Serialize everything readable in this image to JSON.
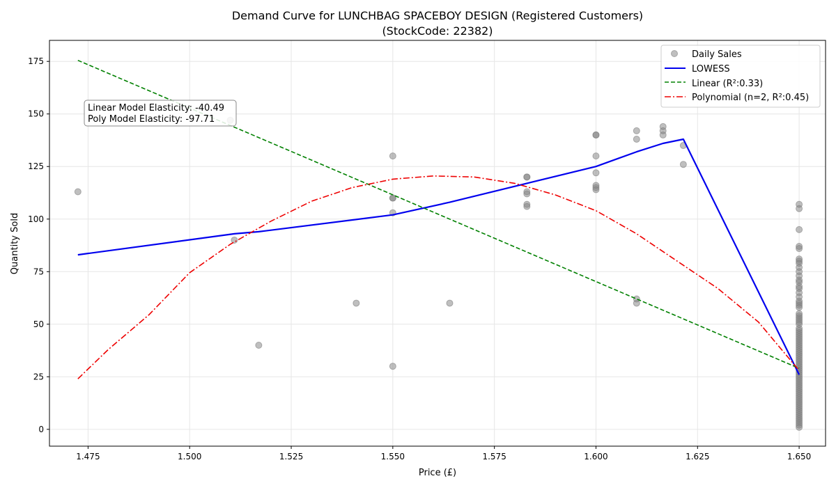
{
  "chart_data": {
    "type": "scatter",
    "title": "Demand Curve for LUNCHBAG SPACEBOY DESIGN  (Registered Customers)",
    "subtitle": "(StockCode: 22382)",
    "xlabel": "Price (£)",
    "ylabel": "Quantity Sold",
    "xlim": [
      1.4655,
      1.6565
    ],
    "ylim": [
      -8,
      185
    ],
    "grid": true,
    "x_ticks": [
      1.475,
      1.5,
      1.525,
      1.55,
      1.575,
      1.6,
      1.625,
      1.65
    ],
    "x_tick_labels": [
      "1.475",
      "1.500",
      "1.525",
      "1.550",
      "1.575",
      "1.600",
      "1.625",
      "1.650"
    ],
    "y_ticks": [
      0,
      25,
      50,
      75,
      100,
      125,
      150,
      175
    ],
    "y_tick_labels": [
      "0",
      "25",
      "50",
      "75",
      "100",
      "125",
      "150",
      "175"
    ],
    "legend_position": "top-right",
    "annotation": {
      "line1": "Linear Model Elasticity: -40.49",
      "line2": "Poly Model Elasticity: -97.71",
      "position": "upper-left"
    },
    "series": [
      {
        "name": "Daily Sales",
        "kind": "scatter",
        "color": "#808080",
        "points": [
          [
            1.4725,
            113
          ],
          [
            1.51,
            147
          ],
          [
            1.511,
            90
          ],
          [
            1.517,
            40
          ],
          [
            1.541,
            60
          ],
          [
            1.55,
            130
          ],
          [
            1.55,
            110
          ],
          [
            1.55,
            110
          ],
          [
            1.55,
            103
          ],
          [
            1.55,
            30
          ],
          [
            1.564,
            60
          ],
          [
            1.583,
            120
          ],
          [
            1.583,
            120
          ],
          [
            1.583,
            113
          ],
          [
            1.583,
            112
          ],
          [
            1.583,
            107
          ],
          [
            1.583,
            106
          ],
          [
            1.6,
            140
          ],
          [
            1.6,
            140
          ],
          [
            1.6,
            130
          ],
          [
            1.6,
            122
          ],
          [
            1.6,
            116
          ],
          [
            1.6,
            115
          ],
          [
            1.6,
            114
          ],
          [
            1.61,
            142
          ],
          [
            1.61,
            138
          ],
          [
            1.61,
            62
          ],
          [
            1.61,
            60
          ],
          [
            1.6165,
            144
          ],
          [
            1.6165,
            142
          ],
          [
            1.6165,
            140
          ],
          [
            1.6215,
            135
          ],
          [
            1.6215,
            126
          ],
          [
            1.65,
            107
          ],
          [
            1.65,
            105
          ],
          [
            1.65,
            95
          ],
          [
            1.65,
            87
          ],
          [
            1.65,
            86
          ],
          [
            1.65,
            81
          ],
          [
            1.65,
            80
          ],
          [
            1.65,
            79
          ],
          [
            1.65,
            77
          ],
          [
            1.65,
            75
          ],
          [
            1.65,
            73
          ],
          [
            1.65,
            71
          ],
          [
            1.65,
            70
          ],
          [
            1.65,
            68
          ],
          [
            1.65,
            67
          ],
          [
            1.65,
            65
          ],
          [
            1.65,
            63
          ],
          [
            1.65,
            61
          ],
          [
            1.65,
            60
          ],
          [
            1.65,
            59
          ],
          [
            1.65,
            58
          ],
          [
            1.65,
            55
          ],
          [
            1.65,
            54
          ],
          [
            1.65,
            53
          ],
          [
            1.65,
            52
          ],
          [
            1.65,
            51
          ],
          [
            1.65,
            50
          ],
          [
            1.65,
            48
          ],
          [
            1.65,
            47
          ],
          [
            1.65,
            46
          ],
          [
            1.65,
            45
          ],
          [
            1.65,
            44
          ],
          [
            1.65,
            43
          ],
          [
            1.65,
            42
          ],
          [
            1.65,
            41
          ],
          [
            1.65,
            40
          ],
          [
            1.65,
            39
          ],
          [
            1.65,
            38
          ],
          [
            1.65,
            37
          ],
          [
            1.65,
            36
          ],
          [
            1.65,
            35
          ],
          [
            1.65,
            34
          ],
          [
            1.65,
            33
          ],
          [
            1.65,
            32
          ],
          [
            1.65,
            31
          ],
          [
            1.65,
            30
          ],
          [
            1.65,
            29
          ],
          [
            1.65,
            28
          ],
          [
            1.65,
            27
          ],
          [
            1.65,
            26
          ],
          [
            1.65,
            25
          ],
          [
            1.65,
            24
          ],
          [
            1.65,
            23
          ],
          [
            1.65,
            22
          ],
          [
            1.65,
            21
          ],
          [
            1.65,
            20
          ],
          [
            1.65,
            19
          ],
          [
            1.65,
            18
          ],
          [
            1.65,
            17
          ],
          [
            1.65,
            16
          ],
          [
            1.65,
            15
          ],
          [
            1.65,
            14
          ],
          [
            1.65,
            13
          ],
          [
            1.65,
            12
          ],
          [
            1.65,
            11
          ],
          [
            1.65,
            10
          ],
          [
            1.65,
            9
          ],
          [
            1.65,
            8
          ],
          [
            1.65,
            7
          ],
          [
            1.65,
            6
          ],
          [
            1.65,
            5
          ],
          [
            1.65,
            4
          ],
          [
            1.65,
            3
          ],
          [
            1.65,
            2
          ],
          [
            1.65,
            1
          ]
        ]
      },
      {
        "name": "LOWESS",
        "kind": "line",
        "color": "#0000ee",
        "dash": "solid",
        "points": [
          [
            1.4725,
            83
          ],
          [
            1.511,
            93
          ],
          [
            1.517,
            94
          ],
          [
            1.55,
            102
          ],
          [
            1.564,
            108
          ],
          [
            1.583,
            117
          ],
          [
            1.6,
            125
          ],
          [
            1.61,
            132
          ],
          [
            1.6165,
            136
          ],
          [
            1.6215,
            138
          ],
          [
            1.65,
            26
          ]
        ]
      },
      {
        "name": "Linear (R²:0.33)",
        "kind": "line",
        "color": "#008000",
        "dash": "dashed",
        "points": [
          [
            1.4725,
            175.5
          ],
          [
            1.65,
            29
          ]
        ]
      },
      {
        "name": "Polynomial (n=2, R²:0.45)",
        "kind": "line",
        "color": "#ee0000",
        "dash": "dashdot",
        "points": [
          [
            1.4725,
            24
          ],
          [
            1.48,
            38
          ],
          [
            1.49,
            54.5
          ],
          [
            1.5,
            74.5
          ],
          [
            1.51,
            88
          ],
          [
            1.52,
            99
          ],
          [
            1.53,
            108.5
          ],
          [
            1.54,
            115
          ],
          [
            1.55,
            119
          ],
          [
            1.56,
            120.5
          ],
          [
            1.57,
            120
          ],
          [
            1.58,
            117
          ],
          [
            1.59,
            111.5
          ],
          [
            1.6,
            104
          ],
          [
            1.61,
            93
          ],
          [
            1.62,
            80
          ],
          [
            1.63,
            67
          ],
          [
            1.64,
            51
          ],
          [
            1.65,
            28
          ]
        ]
      }
    ]
  }
}
